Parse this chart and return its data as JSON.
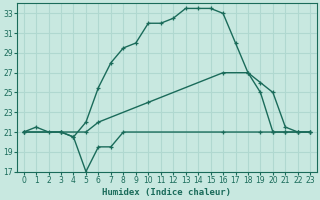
{
  "xlabel": "Humidex (Indice chaleur)",
  "bg_color": "#c8e8e0",
  "grid_color": "#b0d8d0",
  "line_color": "#1a6b5a",
  "xlim": [
    -0.5,
    23.5
  ],
  "ylim": [
    17,
    34
  ],
  "yticks": [
    17,
    19,
    21,
    23,
    25,
    27,
    29,
    31,
    33
  ],
  "xticks": [
    0,
    1,
    2,
    3,
    4,
    5,
    6,
    7,
    8,
    9,
    10,
    11,
    12,
    13,
    14,
    15,
    16,
    17,
    18,
    19,
    20,
    21,
    22,
    23
  ],
  "line1_x": [
    0,
    1,
    2,
    3,
    4,
    5,
    6,
    7,
    8,
    9,
    10,
    11,
    12,
    13,
    14,
    15,
    16,
    17,
    18,
    19,
    20,
    21,
    22,
    23
  ],
  "line1_y": [
    21,
    21.5,
    21,
    21,
    20.5,
    22,
    25.5,
    28,
    29.5,
    30,
    32,
    32,
    32.5,
    33.5,
    33.5,
    33.5,
    33,
    30,
    27,
    25,
    21,
    21,
    21,
    21
  ],
  "line2_x": [
    0,
    3,
    5,
    6,
    10,
    16,
    18,
    19,
    20,
    21,
    22,
    23
  ],
  "line2_y": [
    21,
    21,
    21,
    22,
    24,
    27,
    27,
    26,
    25,
    21.5,
    21,
    21
  ],
  "line3_x": [
    0,
    3,
    4,
    5,
    6,
    7,
    8,
    16,
    19,
    20,
    21,
    22,
    23
  ],
  "line3_y": [
    21,
    21,
    20.5,
    17,
    19.5,
    19.5,
    21,
    21,
    21,
    21,
    21,
    21,
    21
  ]
}
